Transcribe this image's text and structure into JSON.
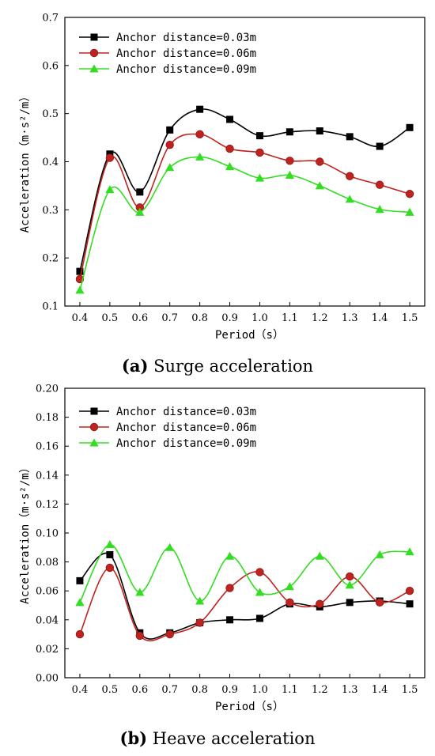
{
  "chart_data": [
    {
      "type": "line",
      "caption_letter": "(a)",
      "caption_text": "Surge acceleration",
      "xlabel": "Period（s）",
      "ylabel": "Acceleration（m·s²/m）",
      "xlim": [
        0.35,
        1.55
      ],
      "ylim": [
        0.1,
        0.7
      ],
      "xticks": [
        "0.4",
        "0.5",
        "0.6",
        "0.7",
        "0.8",
        "0.9",
        "1.0",
        "1.1",
        "1.2",
        "1.3",
        "1.4",
        "1.5"
      ],
      "yticks": [
        "0.1",
        "0.2",
        "0.3",
        "0.4",
        "0.5",
        "0.6",
        "0.7"
      ],
      "x": [
        0.4,
        0.5,
        0.6,
        0.7,
        0.8,
        0.9,
        1.0,
        1.1,
        1.2,
        1.3,
        1.4,
        1.5
      ],
      "legend_position": "top-left",
      "grid": false,
      "series": [
        {
          "name": "Anchor distance=0.03m",
          "color": "#000000",
          "marker": "square",
          "values": [
            0.172,
            0.416,
            0.337,
            0.466,
            0.509,
            0.488,
            0.454,
            0.462,
            0.464,
            0.452,
            0.432,
            0.471
          ]
        },
        {
          "name": "Anchor distance=0.06m",
          "color": "#c0231f",
          "marker": "circle",
          "values": [
            0.156,
            0.408,
            0.305,
            0.435,
            0.457,
            0.427,
            0.419,
            0.402,
            0.4,
            0.37,
            0.352,
            0.333
          ]
        },
        {
          "name": "Anchor distance=0.09m",
          "color": "#33dd22",
          "marker": "triangle",
          "values": [
            0.133,
            0.342,
            0.295,
            0.388,
            0.41,
            0.39,
            0.366,
            0.372,
            0.35,
            0.322,
            0.301,
            0.295
          ]
        }
      ]
    },
    {
      "type": "line",
      "caption_letter": "(b)",
      "caption_text": "Heave acceleration",
      "xlabel": "Period（s）",
      "ylabel": "Acceleration（m·s²/m）",
      "xlim": [
        0.35,
        1.55
      ],
      "ylim": [
        0.0,
        0.2
      ],
      "xticks": [
        "0.4",
        "0.5",
        "0.6",
        "0.7",
        "0.8",
        "0.9",
        "1.0",
        "1.1",
        "1.2",
        "1.3",
        "1.4",
        "1.5"
      ],
      "yticks": [
        "0.00",
        "0.02",
        "0.04",
        "0.06",
        "0.08",
        "0.10",
        "0.12",
        "0.14",
        "0.16",
        "0.18",
        "0.20"
      ],
      "x": [
        0.4,
        0.5,
        0.6,
        0.7,
        0.8,
        0.9,
        1.0,
        1.1,
        1.2,
        1.3,
        1.4,
        1.5
      ],
      "legend_position": "top-left",
      "grid": false,
      "series": [
        {
          "name": "Anchor distance=0.03m",
          "color": "#000000",
          "marker": "square",
          "values": [
            0.067,
            0.085,
            0.031,
            0.031,
            0.038,
            0.04,
            0.041,
            0.051,
            0.049,
            0.052,
            0.053,
            0.051
          ]
        },
        {
          "name": "Anchor distance=0.06m",
          "color": "#c0231f",
          "marker": "circle",
          "values": [
            0.03,
            0.076,
            0.029,
            0.03,
            0.038,
            0.062,
            0.073,
            0.052,
            0.051,
            0.07,
            0.052,
            0.06
          ]
        },
        {
          "name": "Anchor distance=0.09m",
          "color": "#33dd22",
          "marker": "triangle",
          "values": [
            0.052,
            0.092,
            0.059,
            0.09,
            0.053,
            0.084,
            0.059,
            0.063,
            0.084,
            0.064,
            0.085,
            0.087
          ]
        }
      ]
    }
  ]
}
